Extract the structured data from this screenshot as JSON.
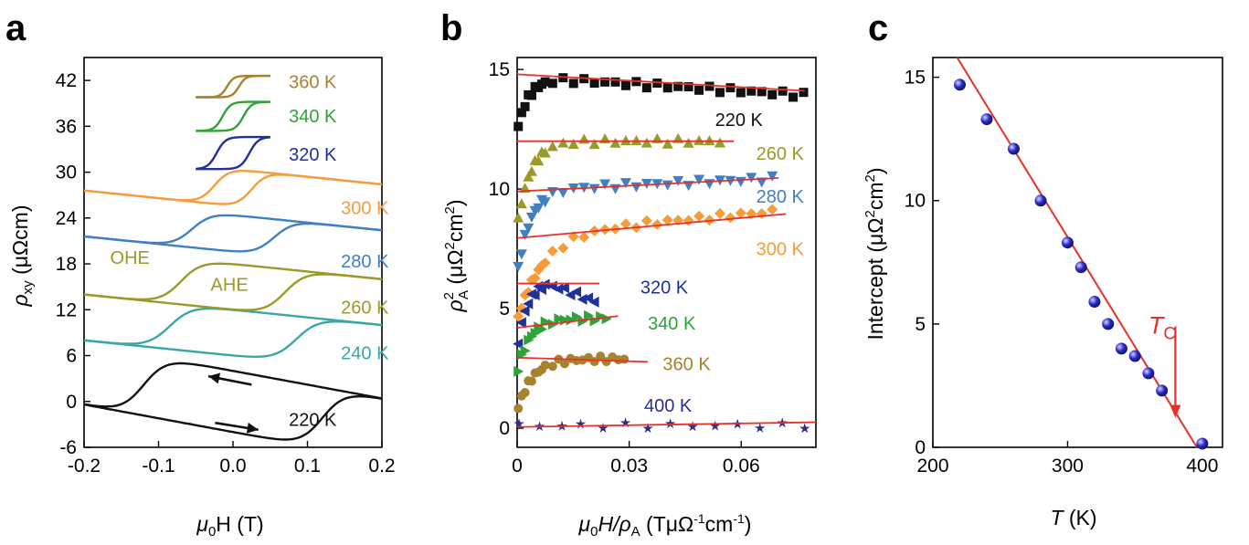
{
  "panels": [
    "a",
    "b",
    "c"
  ],
  "colors": {
    "fit": "#e8302a",
    "t220": "#111111",
    "t240": "#3aa6a6",
    "t260": "#9a9a28",
    "t280": "#3f7fc4",
    "t300": "#f79c3a",
    "t320": "#22309a",
    "t340": "#2fa33a",
    "t360": "#a8822c",
    "t400": "#2f2f8a",
    "c_points": "#2a2acc"
  },
  "chart_data": [
    {
      "panel": "a",
      "type": "line",
      "xlabel_main": "μ",
      "xlabel_sub": "0",
      "xlabel_rest": "H (T)",
      "ylabel_main": "ρ",
      "ylabel_sub": "xy",
      "ylabel_rest": " (μΩcm)",
      "xlim": [
        -0.2,
        0.2
      ],
      "ylim": [
        -6,
        45
      ],
      "xticks": [
        -0.2,
        -0.1,
        0.0,
        0.1,
        0.2
      ],
      "xtick_labels": [
        "-0.2",
        "-0.1",
        "0.0",
        "0.1",
        "0.2"
      ],
      "yticks": [
        -6,
        0,
        6,
        12,
        18,
        24,
        30,
        36,
        42
      ],
      "ytick_labels": [
        "-6",
        "0",
        "6",
        "12",
        "18",
        "24",
        "30",
        "36",
        "42"
      ],
      "annotations": [
        {
          "text": "OHE",
          "x": -0.165,
          "y": 18.0
        },
        {
          "text": "AHE",
          "x": -0.03,
          "y": 14.5
        }
      ],
      "series": [
        {
          "name": "220 K",
          "color_key": "t220",
          "offset": 0,
          "amp": 4.0,
          "hc": 0.12,
          "w": 0.03,
          "slope": -18,
          "xrange": [
            -0.2,
            0.2
          ],
          "label_x": 0.075,
          "label_y": -3.2
        },
        {
          "name": "240 K",
          "color_key": "t240",
          "offset": 9,
          "amp": 3.0,
          "hc": 0.085,
          "w": 0.03,
          "slope": -10,
          "xrange": [
            -0.2,
            0.2
          ],
          "label_x": 0.145,
          "label_y": 5.5
        },
        {
          "name": "260 K",
          "color_key": "t260",
          "offset": 15,
          "amp": 3.0,
          "hc": 0.07,
          "w": 0.028,
          "slope": -10,
          "xrange": [
            -0.2,
            0.2
          ],
          "label_x": 0.145,
          "label_y": 11.5
        },
        {
          "name": "280 K",
          "color_key": "t280",
          "offset": 22,
          "amp": 2.4,
          "hc": 0.055,
          "w": 0.026,
          "slope": -10,
          "xrange": [
            -0.2,
            0.2
          ],
          "label_x": 0.145,
          "label_y": 17.5
        },
        {
          "name": "300 K",
          "color_key": "t300",
          "offset": 28,
          "amp": 2.4,
          "hc": 0.025,
          "w": 0.02,
          "slope": -10,
          "xrange": [
            -0.2,
            0.2
          ],
          "label_x": 0.145,
          "label_y": 24.5
        },
        {
          "name": "320 K",
          "color_key": "t320",
          "offset": 32.5,
          "amp": 2.1,
          "hc": 0.022,
          "w": 0.012,
          "slope": 0,
          "xrange": [
            -0.05,
            0.05
          ],
          "label_x": 0.075,
          "label_y": 31.5
        },
        {
          "name": "340 K",
          "color_key": "t340",
          "offset": 37.3,
          "amp": 1.9,
          "hc": 0.014,
          "w": 0.011,
          "slope": 0,
          "xrange": [
            -0.05,
            0.05
          ],
          "label_x": 0.075,
          "label_y": 36.5
        },
        {
          "name": "360 K",
          "color_key": "t360",
          "offset": 41.2,
          "amp": 1.4,
          "hc": 0.008,
          "w": 0.009,
          "slope": 0,
          "xrange": [
            -0.05,
            0.05
          ],
          "label_x": 0.075,
          "label_y": 41.0
        }
      ]
    },
    {
      "panel": "b",
      "type": "scatter",
      "xlabel_main": "μ",
      "xlabel_sub": "0",
      "xlabel_mid": "H/ρ",
      "xlabel_sub2": "A",
      "xlabel_rest": " (TμΩ",
      "xlabel_sup1": "-1",
      "xlabel_rest2": "cm",
      "xlabel_sup2": "-1",
      "xlabel_end": ")",
      "ylabel_main": "ρ",
      "ylabel_sup": "2",
      "ylabel_sub": "A",
      "ylabel_rest": " (μΩ",
      "ylabel_sup2": "2",
      "ylabel_rest2": "cm",
      "ylabel_sup3": "2",
      "ylabel_end": ")",
      "xlim": [
        0,
        0.08
      ],
      "ylim": [
        -0.8,
        15.5
      ],
      "xticks": [
        0,
        0.03,
        0.06
      ],
      "xtick_labels": [
        "0",
        "0.03",
        "0.06"
      ],
      "yticks": [
        0,
        5,
        10,
        15
      ],
      "ytick_labels": [
        "0",
        "5",
        "10",
        "15"
      ],
      "series": [
        {
          "name": "220 K",
          "color_key": "t220",
          "marker": "square",
          "A": 14.7,
          "B": 2.3,
          "tau": 0.003,
          "slope": -10,
          "xmax": 0.077,
          "fit_intercept": 14.8,
          "fit_slope": -9,
          "fit_xmax": 0.077,
          "label_x": 0.053,
          "label_y": 12.9
        },
        {
          "name": "260 K",
          "color_key": "t260",
          "marker": "triangle-up",
          "A": 12.0,
          "B": 3.6,
          "tau": 0.0035,
          "slope": 0,
          "xmax": 0.056,
          "fit_intercept": 12.0,
          "fit_slope": 0,
          "fit_xmax": 0.058,
          "label_x": 0.064,
          "label_y": 11.5
        },
        {
          "name": "280 K",
          "color_key": "t280",
          "marker": "triangle-down",
          "A": 9.95,
          "B": 3.6,
          "tau": 0.0035,
          "slope": 7,
          "xmax": 0.07,
          "fit_intercept": 9.9,
          "fit_slope": 8,
          "fit_xmax": 0.07,
          "label_x": 0.064,
          "label_y": 9.7
        },
        {
          "name": "300 K",
          "color_key": "t300",
          "marker": "diamond",
          "A": 8.1,
          "B": 3.6,
          "tau": 0.007,
          "slope": 14,
          "xmax": 0.07,
          "fit_intercept": 7.95,
          "fit_slope": 14,
          "fit_xmax": 0.072,
          "label_x": 0.064,
          "label_y": 7.5
        },
        {
          "name": "320 K",
          "color_key": "t320",
          "marker": "triangle-left",
          "A": 6.1,
          "B": 2.8,
          "tau": 0.0025,
          "slope": 0,
          "xmax": 0.022,
          "fit_intercept": 6.05,
          "fit_slope": 0,
          "fit_xmax": 0.022,
          "label_x": 0.033,
          "label_y": 5.9
        },
        {
          "name": "340 K",
          "color_key": "t340",
          "marker": "triangle-right",
          "A": 4.6,
          "B": 2.3,
          "tau": 0.0035,
          "slope": 0,
          "xmax": 0.025,
          "fit_intercept": 4.2,
          "fit_slope": 18,
          "fit_xmax": 0.027,
          "label_x": 0.035,
          "label_y": 4.4
        },
        {
          "name": "360 K",
          "color_key": "t360",
          "marker": "circle",
          "A": 2.9,
          "B": 2.2,
          "tau": 0.004,
          "slope": 0,
          "xmax": 0.03,
          "fit_intercept": 2.95,
          "fit_slope": -5,
          "fit_xmax": 0.035,
          "label_x": 0.039,
          "label_y": 2.7
        },
        {
          "name": "400 K",
          "color_key": "t400",
          "marker": "star",
          "A": 0.1,
          "B": 0,
          "tau": 0.001,
          "slope": 0,
          "xmax": 0.077,
          "fit_intercept": 0.05,
          "fit_slope": 2.5,
          "fit_xmax": 0.08,
          "label_x": 0.034,
          "label_y": 0.95
        }
      ]
    },
    {
      "panel": "c",
      "type": "scatter",
      "xlabel_main": "T",
      "xlabel_rest": " (K)",
      "ylabel_main": "Intercept (μΩ",
      "ylabel_sup": "2",
      "ylabel_rest": "cm",
      "ylabel_sup2": "2",
      "ylabel_end": ")",
      "xlim": [
        200,
        415
      ],
      "ylim": [
        0,
        15.8
      ],
      "xticks": [
        200,
        300,
        400
      ],
      "xtick_labels": [
        "200",
        "300",
        "400"
      ],
      "yticks": [
        0,
        5,
        10,
        15
      ],
      "ytick_labels": [
        "0",
        "5",
        "10",
        "15"
      ],
      "x": [
        220,
        240,
        260,
        280,
        300,
        310,
        320,
        330,
        340,
        350,
        360,
        370,
        400
      ],
      "y": [
        14.7,
        13.3,
        12.1,
        10.0,
        8.3,
        7.3,
        5.9,
        5.0,
        4.0,
        3.7,
        3.0,
        2.3,
        0.15
      ],
      "fit_line": {
        "x": [
          218,
          396
        ],
        "y": [
          15.8,
          0
        ]
      },
      "annotation": {
        "text": "T",
        "sub": "C",
        "x": 360,
        "y": 4.6,
        "arrow_from": [
          380,
          4.9
        ],
        "arrow_to": [
          380,
          1.2
        ]
      }
    }
  ]
}
